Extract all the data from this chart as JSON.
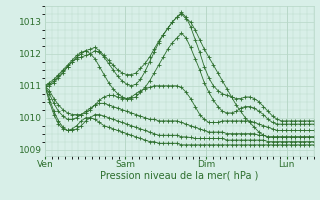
{
  "title": "Pression niveau de la mer( hPa )",
  "bg_color": "#d8efe8",
  "grid_color": "#b8d8c8",
  "line_color": "#2d6e2d",
  "ylim": [
    1008.8,
    1013.5
  ],
  "yticks": [
    1009,
    1010,
    1011,
    1012,
    1013
  ],
  "xtick_labels": [
    "Ven",
    "Sam",
    "Dim",
    "Lun"
  ],
  "xtick_pos": [
    0,
    72,
    144,
    216
  ],
  "total_hours": 240,
  "series": [
    [
      1011.0,
      1011.05,
      1011.15,
      1011.3,
      1011.45,
      1011.6,
      1011.75,
      1011.9,
      1012.0,
      1012.1,
      1012.15,
      1012.2,
      1012.1,
      1011.95,
      1011.8,
      1011.65,
      1011.5,
      1011.4,
      1011.35,
      1011.35,
      1011.4,
      1011.55,
      1011.7,
      1011.9,
      1012.15,
      1012.4,
      1012.6,
      1012.8,
      1013.0,
      1013.15,
      1013.25,
      1013.1,
      1013.0,
      1012.75,
      1012.45,
      1012.15,
      1011.9,
      1011.65,
      1011.4,
      1011.15,
      1010.9,
      1010.65,
      1010.4,
      1010.2,
      1010.0,
      1009.85,
      1009.7,
      1009.55,
      1009.45,
      1009.4,
      1009.4,
      1009.4,
      1009.4,
      1009.4,
      1009.4,
      1009.4,
      1009.4,
      1009.4,
      1009.4,
      1009.4
    ],
    [
      1011.0,
      1011.1,
      1011.2,
      1011.35,
      1011.5,
      1011.65,
      1011.8,
      1011.95,
      1012.05,
      1012.1,
      1012.0,
      1011.85,
      1011.6,
      1011.35,
      1011.1,
      1010.9,
      1010.75,
      1010.65,
      1010.6,
      1010.6,
      1010.65,
      1010.8,
      1010.95,
      1011.15,
      1011.4,
      1011.65,
      1011.9,
      1012.15,
      1012.35,
      1012.5,
      1012.65,
      1012.5,
      1012.2,
      1011.85,
      1011.5,
      1011.1,
      1010.8,
      1010.55,
      1010.35,
      1010.2,
      1010.15,
      1010.15,
      1010.2,
      1010.3,
      1010.35,
      1010.35,
      1010.3,
      1010.2,
      1010.1,
      1009.95,
      1009.85,
      1009.8,
      1009.8,
      1009.8,
      1009.8,
      1009.8,
      1009.8,
      1009.8,
      1009.8,
      1009.8
    ],
    [
      1011.0,
      1010.85,
      1010.6,
      1010.4,
      1010.25,
      1010.15,
      1010.1,
      1010.1,
      1010.1,
      1010.15,
      1010.25,
      1010.4,
      1010.55,
      1010.65,
      1010.7,
      1010.7,
      1010.65,
      1010.6,
      1010.6,
      1010.65,
      1010.75,
      1010.85,
      1010.9,
      1010.95,
      1011.0,
      1011.0,
      1011.0,
      1011.0,
      1011.0,
      1011.0,
      1010.95,
      1010.8,
      1010.6,
      1010.35,
      1010.1,
      1009.95,
      1009.85,
      1009.85,
      1009.85,
      1009.9,
      1009.9,
      1009.9,
      1009.9,
      1009.9,
      1009.9,
      1009.9,
      1009.85,
      1009.8,
      1009.75,
      1009.7,
      1009.65,
      1009.6,
      1009.6,
      1009.6,
      1009.6,
      1009.6,
      1009.6,
      1009.6,
      1009.6,
      1009.6
    ],
    [
      1011.0,
      1010.75,
      1010.45,
      1010.2,
      1010.05,
      1009.95,
      1009.95,
      1010.0,
      1010.1,
      1010.2,
      1010.3,
      1010.4,
      1010.45,
      1010.45,
      1010.4,
      1010.35,
      1010.3,
      1010.25,
      1010.2,
      1010.15,
      1010.1,
      1010.05,
      1010.0,
      1009.95,
      1009.95,
      1009.9,
      1009.9,
      1009.9,
      1009.9,
      1009.9,
      1009.85,
      1009.8,
      1009.75,
      1009.7,
      1009.65,
      1009.6,
      1009.55,
      1009.55,
      1009.55,
      1009.55,
      1009.5,
      1009.5,
      1009.5,
      1009.5,
      1009.5,
      1009.5,
      1009.5,
      1009.45,
      1009.45,
      1009.4,
      1009.4,
      1009.4,
      1009.4,
      1009.4,
      1009.4,
      1009.4,
      1009.4,
      1009.4,
      1009.4,
      1009.4
    ],
    [
      1011.0,
      1010.6,
      1010.2,
      1009.9,
      1009.7,
      1009.6,
      1009.6,
      1009.65,
      1009.75,
      1009.9,
      1010.0,
      1010.1,
      1010.1,
      1010.05,
      1010.0,
      1009.95,
      1009.9,
      1009.85,
      1009.8,
      1009.75,
      1009.7,
      1009.65,
      1009.6,
      1009.55,
      1009.5,
      1009.45,
      1009.45,
      1009.45,
      1009.45,
      1009.45,
      1009.4,
      1009.4,
      1009.38,
      1009.35,
      1009.35,
      1009.35,
      1009.35,
      1009.35,
      1009.35,
      1009.35,
      1009.3,
      1009.3,
      1009.3,
      1009.3,
      1009.3,
      1009.3,
      1009.3,
      1009.3,
      1009.3,
      1009.25,
      1009.25,
      1009.25,
      1009.25,
      1009.25,
      1009.25,
      1009.25,
      1009.25,
      1009.25,
      1009.25,
      1009.25
    ],
    [
      1011.0,
      1010.5,
      1010.1,
      1009.8,
      1009.65,
      1009.6,
      1009.65,
      1009.75,
      1009.9,
      1010.0,
      1010.0,
      1009.95,
      1009.85,
      1009.75,
      1009.7,
      1009.65,
      1009.6,
      1009.55,
      1009.5,
      1009.45,
      1009.4,
      1009.35,
      1009.3,
      1009.25,
      1009.25,
      1009.2,
      1009.2,
      1009.2,
      1009.2,
      1009.2,
      1009.15,
      1009.15,
      1009.15,
      1009.15,
      1009.15,
      1009.15,
      1009.15,
      1009.15,
      1009.15,
      1009.15,
      1009.15,
      1009.15,
      1009.15,
      1009.15,
      1009.15,
      1009.15,
      1009.15,
      1009.15,
      1009.15,
      1009.15,
      1009.15,
      1009.15,
      1009.15,
      1009.15,
      1009.15,
      1009.15,
      1009.15,
      1009.15,
      1009.15,
      1009.15
    ],
    [
      1011.0,
      1011.0,
      1011.1,
      1011.25,
      1011.4,
      1011.6,
      1011.75,
      1011.85,
      1011.9,
      1011.95,
      1012.0,
      1012.1,
      1012.05,
      1011.9,
      1011.7,
      1011.5,
      1011.3,
      1011.15,
      1011.05,
      1011.0,
      1011.05,
      1011.2,
      1011.45,
      1011.75,
      1012.05,
      1012.35,
      1012.6,
      1012.8,
      1013.0,
      1013.15,
      1013.3,
      1013.15,
      1012.85,
      1012.45,
      1012.05,
      1011.6,
      1011.25,
      1011.0,
      1010.85,
      1010.75,
      1010.7,
      1010.65,
      1010.6,
      1010.6,
      1010.65,
      1010.65,
      1010.6,
      1010.5,
      1010.35,
      1010.2,
      1010.05,
      1009.95,
      1009.9,
      1009.9,
      1009.9,
      1009.9,
      1009.9,
      1009.9,
      1009.9,
      1009.9
    ]
  ]
}
